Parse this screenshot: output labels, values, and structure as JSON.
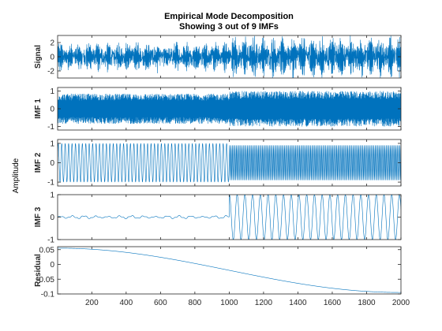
{
  "chart_data": {
    "type": "line",
    "title": "Empirical Mode Decomposition",
    "subtitle": "Showing 3 out of 9 IMFs",
    "ylabel": "Amplitude",
    "line_color": "#0072bd",
    "x_range": [
      1,
      2000
    ],
    "x_ticks": [
      200,
      400,
      600,
      800,
      1000,
      1200,
      1400,
      1600,
      1800,
      2000
    ],
    "panels": [
      {
        "label": "Signal",
        "ylim": [
          -3,
          3
        ],
        "yticks": [
          2,
          0,
          -2
        ],
        "series": [
          {
            "segment": [
              1,
              1000
            ],
            "shape": "broadband noise",
            "amplitude": 2.0
          },
          {
            "segment": [
              1000,
              2000
            ],
            "shape": "broadband noise",
            "amplitude": 2.8
          }
        ]
      },
      {
        "label": "IMF 1",
        "ylim": [
          -1.2,
          1.2
        ],
        "yticks": [
          1,
          0,
          -1
        ],
        "series": [
          {
            "segment": [
              1,
              1000
            ],
            "shape": "high-frequency oscillation",
            "amplitude": 0.85
          },
          {
            "segment": [
              1000,
              2000
            ],
            "shape": "high-frequency oscillation",
            "amplitude": 1.0
          }
        ]
      },
      {
        "label": "IMF 2",
        "ylim": [
          -1.2,
          1.2
        ],
        "yticks": [
          1,
          0,
          -1
        ],
        "series": [
          {
            "segment": [
              1,
              1000
            ],
            "shape": "sinusoid",
            "period": 20,
            "amplitude": 1.0
          },
          {
            "segment": [
              1000,
              2000
            ],
            "shape": "sinusoid",
            "period": 8,
            "amplitude": 0.9
          }
        ]
      },
      {
        "label": "IMF 3",
        "ylim": [
          -1,
          1
        ],
        "yticks": [
          1,
          0,
          -1
        ],
        "series": [
          {
            "segment": [
              1,
              1000
            ],
            "shape": "small wobble",
            "amplitude": 0.08
          },
          {
            "segment": [
              1000,
              2000
            ],
            "shape": "sinusoid",
            "period": 45,
            "amplitude": 1.0
          }
        ]
      },
      {
        "label": "Residual",
        "ylim": [
          -0.1,
          0.06
        ],
        "yticks": [
          0.05,
          0,
          -0.05,
          -0.1
        ],
        "series": [
          {
            "segment": [
              1,
              2000
            ],
            "shape": "smooth decreasing trend",
            "start": 0.055,
            "end": -0.095
          }
        ]
      }
    ]
  }
}
